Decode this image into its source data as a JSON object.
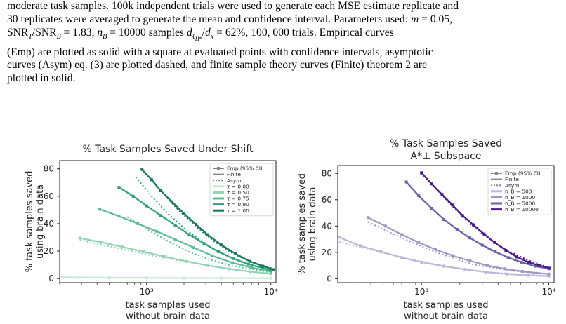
{
  "caption": {
    "lines": [
      "moderate task samples. 100k independent trials were used to generate each MSE estimate replicate and",
      "30 replicates were averaged to generate the mean and confidence interval. Parameters used: m = 0.05,",
      "SNR_T/SNR_B = 1.83, n_B = 10000 samples d_{ℓH*}/d_x = 62%, 100,000 trials. Empirical curves",
      "(Emp) are plotted as solid with a square at evaluated points with confidence intervals, asymptotic",
      "curves (Asym) eq. (3) are plotted dashed, and finite sample theory curves (Finite) theorem 2 are",
      "plotted in solid."
    ]
  },
  "chart_data": [
    {
      "type": "line",
      "title": "% Task Samples Saved Under Shift",
      "xlabel": "task samples used\nwithout brain data",
      "ylabel": "% task samples saved\nusing brain data",
      "xscale": "log",
      "xlim": [
        200,
        11000
      ],
      "ylim": [
        -3,
        86
      ],
      "yticks": [
        0,
        20,
        40,
        60,
        80
      ],
      "xtick_labels": [
        "10³",
        "10⁴"
      ],
      "legend": [
        "Emp (95% CI)",
        "Finite",
        "Asym",
        "τ = 0.00",
        "τ = 0.50",
        "τ = 0.75",
        "τ = 0.90",
        "τ = 1.00"
      ],
      "legend_position": "top-right",
      "series": [
        {
          "name": "τ = 0.00",
          "color": "#c8e8d8",
          "emp": [
            [
              210,
              1.0
            ],
            [
              280,
              0.8
            ],
            [
              500,
              0.6
            ],
            [
              1000,
              0.5
            ],
            [
              2000,
              0.4
            ],
            [
              4000,
              0.3
            ],
            [
              10000,
              0.2
            ]
          ],
          "asym": [
            [
              210,
              0.5
            ],
            [
              10000,
              0.2
            ]
          ]
        },
        {
          "name": "τ = 0.50",
          "color": "#93d4b4",
          "emp": [
            [
              290,
              29.5
            ],
            [
              430,
              26.5
            ],
            [
              640,
              23
            ],
            [
              950,
              19.5
            ],
            [
              1400,
              16
            ],
            [
              2100,
              12.5
            ],
            [
              3100,
              9.5
            ],
            [
              4600,
              7
            ],
            [
              6800,
              5
            ],
            [
              10000,
              3.5
            ]
          ],
          "asym": [
            [
              290,
              28
            ],
            [
              600,
              22
            ],
            [
              1200,
              16
            ],
            [
              2500,
              11
            ],
            [
              5000,
              6.5
            ],
            [
              10000,
              3.5
            ]
          ]
        },
        {
          "name": "τ = 0.75",
          "color": "#5cbc94",
          "emp": [
            [
              420,
              50.5
            ],
            [
              600,
              45.5
            ],
            [
              850,
              40
            ],
            [
              1200,
              34.5
            ],
            [
              1700,
              28.5
            ],
            [
              2400,
              22.5
            ],
            [
              3400,
              16.5
            ],
            [
              4900,
              11.5
            ],
            [
              7000,
              8
            ],
            [
              10000,
              5
            ]
          ],
          "asym": [
            [
              700,
              45
            ],
            [
              1000,
              36
            ],
            [
              1500,
              27
            ],
            [
              2200,
              19.5
            ],
            [
              3300,
              13.5
            ],
            [
              5000,
              9
            ],
            [
              10000,
              4.5
            ]
          ]
        },
        {
          "name": "τ = 0.90",
          "color": "#319f7b",
          "emp": [
            [
              600,
              66.5
            ],
            [
              780,
              60
            ],
            [
              1000,
              53
            ],
            [
              1300,
              46
            ],
            [
              1700,
              39
            ],
            [
              2200,
              32
            ],
            [
              2900,
              25.5
            ],
            [
              3800,
              19.5
            ],
            [
              5000,
              14.5
            ],
            [
              6600,
              10.5
            ],
            [
              10000,
              6
            ]
          ],
          "asym": [
            [
              820,
              74
            ],
            [
              1100,
              60
            ],
            [
              1500,
              47
            ],
            [
              2100,
              35
            ],
            [
              3000,
              25
            ],
            [
              4300,
              17
            ],
            [
              6000,
              11.5
            ],
            [
              10000,
              6
            ]
          ]
        },
        {
          "name": "τ = 1.00",
          "color": "#17765e",
          "emp": [
            [
              920,
              79.5
            ],
            [
              1100,
              72
            ],
            [
              1300,
              64
            ],
            [
              1600,
              56
            ],
            [
              2000,
              47.5
            ],
            [
              2500,
              39.5
            ],
            [
              3100,
              32
            ],
            [
              4000,
              24.5
            ],
            [
              5200,
              18
            ],
            [
              6800,
              12.5
            ],
            [
              8600,
              9
            ],
            [
              10500,
              6.5
            ]
          ],
          "asym": [
            [
              920,
              80
            ],
            [
              1300,
              64
            ],
            [
              1800,
              50
            ],
            [
              2500,
              38
            ],
            [
              3500,
              27
            ],
            [
              5000,
              18
            ],
            [
              7000,
              12
            ],
            [
              10500,
              7
            ]
          ]
        }
      ]
    },
    {
      "type": "line",
      "title": "% Task Samples Saved",
      "title_line2": "A*⊥ Subspace",
      "xlabel": "task samples used\nwithout brain data",
      "ylabel": "% task samples saved\nusing brain data",
      "xscale": "log",
      "xlim": [
        220,
        11000
      ],
      "ylim": [
        -3,
        86
      ],
      "yticks": [
        0,
        20,
        40,
        60,
        80
      ],
      "xtick_labels": [
        "10³",
        "10⁴"
      ],
      "legend": [
        "Emp (95% CI)",
        "Finite",
        "Asym",
        "n_B = 500",
        "n_B = 1000",
        "n_B = 5000",
        "n_B = 10000"
      ],
      "legend_position": "top-right",
      "series": [
        {
          "name": "n_B = 500",
          "color": "#bcb8da",
          "emp": [
            [
              225,
              31.5
            ],
            [
              330,
              25
            ],
            [
              480,
              20.5
            ],
            [
              700,
              16
            ],
            [
              1000,
              12.5
            ],
            [
              1500,
              9.5
            ],
            [
              2200,
              7
            ],
            [
              3200,
              5
            ],
            [
              4700,
              3.5
            ],
            [
              6900,
              2.5
            ],
            [
              10000,
              2
            ]
          ],
          "asym": [
            [
              225,
              28
            ],
            [
              400,
              22
            ],
            [
              800,
              15
            ],
            [
              1600,
              9
            ],
            [
              3200,
              5
            ],
            [
              10000,
              2
            ]
          ]
        },
        {
          "name": "n_B = 1000",
          "color": "#9b98c8",
          "emp": [
            [
              380,
              46.5
            ],
            [
              520,
              40
            ],
            [
              700,
              33.5
            ],
            [
              950,
              27.5
            ],
            [
              1300,
              22
            ],
            [
              1750,
              17.5
            ],
            [
              2400,
              13.5
            ],
            [
              3300,
              10
            ],
            [
              4500,
              7.5
            ],
            [
              6200,
              5.5
            ],
            [
              10000,
              3.5
            ]
          ],
          "asym": [
            [
              380,
              43
            ],
            [
              700,
              31
            ],
            [
              1300,
              20
            ],
            [
              2500,
              11
            ],
            [
              5000,
              6
            ],
            [
              10000,
              3.5
            ]
          ]
        },
        {
          "name": "n_B = 5000",
          "color": "#6f5eaa",
          "emp": [
            [
              760,
              73.5
            ],
            [
              950,
              63
            ],
            [
              1200,
              53.5
            ],
            [
              1500,
              45
            ],
            [
              1900,
              37.5
            ],
            [
              2400,
              31
            ],
            [
              3000,
              25.5
            ],
            [
              3800,
              20.5
            ],
            [
              4800,
              16
            ],
            [
              6100,
              12.5
            ],
            [
              7800,
              9.5
            ],
            [
              10000,
              7.5
            ]
          ],
          "asym": [
            [
              760,
              73
            ],
            [
              1100,
              57
            ],
            [
              1600,
              43
            ],
            [
              2400,
              31
            ],
            [
              3600,
              21
            ],
            [
              5400,
              14
            ],
            [
              10000,
              7.5
            ]
          ]
        },
        {
          "name": "n_B = 10000",
          "color": "#4a1a87",
          "emp": [
            [
              1000,
              80.5
            ],
            [
              1200,
              72
            ],
            [
              1450,
              64
            ],
            [
              1750,
              56
            ],
            [
              2100,
              48
            ],
            [
              2550,
              41
            ],
            [
              3100,
              34
            ],
            [
              3750,
              27.5
            ],
            [
              4600,
              21.5
            ],
            [
              5600,
              16.5
            ],
            [
              6900,
              12.5
            ],
            [
              8400,
              10
            ],
            [
              10200,
              8
            ]
          ],
          "asym": [
            [
              1000,
              80
            ],
            [
              1500,
              62
            ],
            [
              2200,
              45
            ],
            [
              3200,
              32
            ],
            [
              4600,
              22
            ],
            [
              6700,
              14.5
            ],
            [
              10200,
              8
            ]
          ]
        }
      ]
    }
  ]
}
